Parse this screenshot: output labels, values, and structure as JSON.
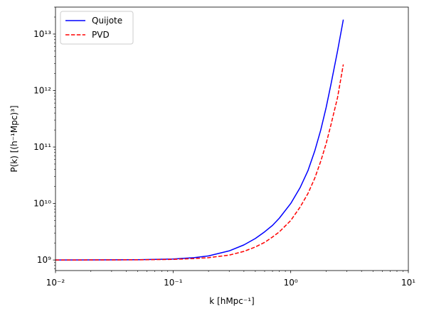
{
  "chart_data": {
    "type": "line",
    "title": "",
    "xlabel": "k [hMpc⁻¹]",
    "ylabel": "P(k) [(h⁻¹Mpc)³]",
    "xscale": "log",
    "yscale": "log",
    "xlim": [
      0.01,
      10
    ],
    "ylim": [
      650000000.0,
      30000000000000.0
    ],
    "grid": false,
    "legend": "top-left",
    "x_tick_labels": [
      "10⁻²",
      "10⁻¹",
      "10⁰",
      "10¹"
    ],
    "y_tick_labels": [
      "10⁹",
      "10¹⁰",
      "10¹¹",
      "10¹²",
      "10¹³"
    ],
    "series": [
      {
        "name": "Quijote",
        "color": "#0000ff",
        "style": "solid",
        "x": [
          0.01,
          0.02,
          0.05,
          0.1,
          0.15,
          0.2,
          0.3,
          0.4,
          0.5,
          0.6,
          0.7,
          0.8,
          1.0,
          1.2,
          1.4,
          1.6,
          1.8,
          2.0,
          2.2,
          2.5,
          2.8
        ],
        "y": [
          1000000000.0,
          1003000000.0,
          1010000000.0,
          1040000000.0,
          1100000000.0,
          1180000000.0,
          1450000000.0,
          1850000000.0,
          2400000000.0,
          3150000000.0,
          4100000000.0,
          5500000000.0,
          10000000000.0,
          19000000000.0,
          38000000000.0,
          85000000000.0,
          200000000000.0,
          500000000000.0,
          1300000000000.0,
          5000000000000.0,
          18000000000000.0
        ]
      },
      {
        "name": "PVD",
        "color": "#ff0000",
        "style": "dashed",
        "x": [
          0.01,
          0.02,
          0.05,
          0.1,
          0.15,
          0.2,
          0.3,
          0.4,
          0.5,
          0.6,
          0.7,
          0.8,
          1.0,
          1.2,
          1.4,
          1.6,
          1.8,
          2.0,
          2.2,
          2.5,
          2.8
        ],
        "y": [
          1000000000.0,
          1002000000.0,
          1007000000.0,
          1025000000.0,
          1060000000.0,
          1100000000.0,
          1220000000.0,
          1420000000.0,
          1700000000.0,
          2050000000.0,
          2550000000.0,
          3150000000.0,
          5000000000.0,
          8600000000.0,
          15000000000.0,
          28000000000.0,
          56000000000.0,
          115000000000.0,
          250000000000.0,
          750000000000.0,
          2900000000000.0
        ]
      }
    ]
  }
}
